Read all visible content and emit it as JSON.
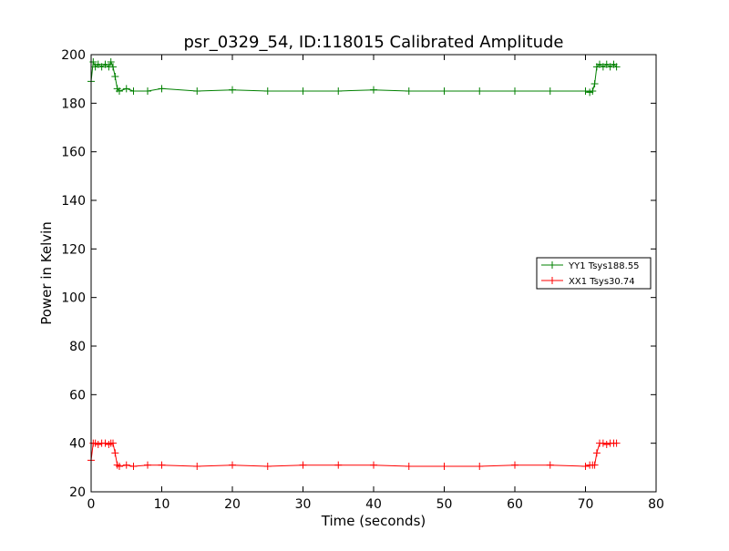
{
  "chart_data": {
    "type": "line",
    "title": "psr_0329_54, ID:118015 Calibrated Amplitude",
    "xlabel": "Time (seconds)",
    "ylabel": "Power in Kelvin",
    "xlim": [
      0,
      80
    ],
    "ylim": [
      20,
      200
    ],
    "xticks": [
      "0",
      "10",
      "20",
      "30",
      "40",
      "50",
      "60",
      "70",
      "80"
    ],
    "yticks": [
      "20",
      "40",
      "60",
      "80",
      "100",
      "120",
      "140",
      "160",
      "180",
      "200"
    ],
    "grid": false,
    "legend_position": "center-right",
    "series": [
      {
        "name": "YY1 Tsys188.55",
        "color": "#008000",
        "marker": "+",
        "x": [
          0.0,
          0.3,
          0.6,
          1.0,
          1.5,
          2.0,
          2.5,
          2.8,
          3.1,
          3.4,
          3.7,
          4.0,
          5.0,
          6.0,
          8.0,
          10.0,
          15.0,
          20.0,
          25.0,
          30.0,
          35.0,
          40.0,
          45.0,
          50.0,
          55.0,
          60.0,
          65.0,
          70.0,
          70.6,
          71.0,
          71.3,
          71.6,
          72.0,
          72.5,
          73.0,
          73.5,
          74.0,
          74.4
        ],
        "y": [
          189,
          197,
          195,
          196,
          195,
          196,
          195,
          197,
          195,
          191,
          186,
          185,
          186,
          185,
          185,
          186,
          185,
          185.5,
          185,
          185,
          185,
          185.5,
          185,
          185,
          185,
          185,
          185,
          185,
          184.5,
          185,
          188,
          195,
          196,
          195,
          196,
          195,
          196,
          195
        ]
      },
      {
        "name": "XX1 Tsys30.74",
        "color": "#ff0000",
        "marker": "+",
        "x": [
          0.0,
          0.3,
          0.6,
          1.0,
          1.5,
          2.0,
          2.5,
          2.8,
          3.1,
          3.4,
          3.7,
          4.0,
          5.0,
          6.0,
          8.0,
          10.0,
          15.0,
          20.0,
          25.0,
          30.0,
          35.0,
          40.0,
          45.0,
          50.0,
          55.0,
          60.0,
          65.0,
          70.0,
          70.6,
          71.0,
          71.3,
          71.6,
          72.0,
          72.5,
          73.0,
          73.5,
          74.0,
          74.4
        ],
        "y": [
          33,
          40,
          40,
          39.5,
          40,
          40,
          39.5,
          40,
          40,
          36,
          31,
          30.5,
          31,
          30.5,
          31,
          31,
          30.5,
          31,
          30.5,
          31,
          31,
          31,
          30.5,
          30.5,
          30.5,
          31,
          31,
          30.5,
          31,
          31,
          31,
          36,
          40,
          40,
          39.5,
          40,
          40,
          40
        ]
      }
    ]
  }
}
